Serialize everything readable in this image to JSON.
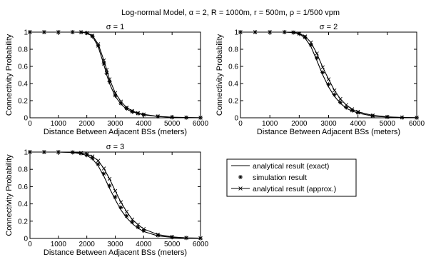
{
  "suptitle": "Log-normal Model, α = 2, R = 1000m, r = 500m, ρ = 1/500 vpm",
  "legend": {
    "entries": [
      "analytical result (exact)",
      "simulation result",
      "analytical result (approx.)"
    ],
    "markers": [
      "line",
      "asterisk",
      "line-x"
    ]
  },
  "chart_data": [
    {
      "type": "line",
      "title": "σ = 1",
      "xlabel": "Distance Between Adjacent BSs (meters)",
      "ylabel": "Connectivity Probability",
      "xlim": [
        0,
        6000
      ],
      "ylim": [
        0,
        1
      ],
      "xticks": [
        "0",
        "1000",
        "2000",
        "3000",
        "4000",
        "5000",
        "6000"
      ],
      "yticks": [
        "0",
        "0.2",
        "0.4",
        "0.6",
        "0.8",
        "1"
      ],
      "grid": false,
      "x": [
        0,
        500,
        1000,
        1500,
        1800,
        2000,
        2200,
        2400,
        2600,
        2700,
        2800,
        3000,
        3200,
        3400,
        3600,
        3800,
        4000,
        4500,
        5000,
        5500,
        6000
      ],
      "series": [
        {
          "values": [
            1.0,
            1.0,
            1.0,
            1.0,
            0.999,
            0.99,
            0.95,
            0.83,
            0.62,
            0.5,
            0.4,
            0.25,
            0.16,
            0.1,
            0.07,
            0.05,
            0.035,
            0.015,
            0.006,
            0.002,
            0.001
          ]
        },
        {
          "values": [
            1.0,
            1.0,
            1.0,
            1.0,
            0.999,
            0.99,
            0.95,
            0.84,
            0.63,
            0.52,
            0.42,
            0.26,
            0.17,
            0.11,
            0.07,
            0.05,
            0.035,
            0.015,
            0.006,
            0.002,
            0.001
          ]
        },
        {
          "values": [
            1.0,
            1.0,
            1.0,
            1.0,
            0.999,
            0.99,
            0.96,
            0.86,
            0.67,
            0.56,
            0.45,
            0.29,
            0.19,
            0.12,
            0.08,
            0.055,
            0.04,
            0.017,
            0.007,
            0.003,
            0.001
          ]
        }
      ]
    },
    {
      "type": "line",
      "title": "σ = 2",
      "xlabel": "Distance Between Adjacent BSs (meters)",
      "ylabel": "Connectivity Probability",
      "xlim": [
        0,
        6000
      ],
      "ylim": [
        0,
        1
      ],
      "xticks": [
        "0",
        "1000",
        "2000",
        "3000",
        "4000",
        "5000",
        "6000"
      ],
      "yticks": [
        "0",
        "0.2",
        "0.4",
        "0.6",
        "0.8",
        "1"
      ],
      "grid": false,
      "x": [
        0,
        500,
        1000,
        1500,
        1800,
        2000,
        2200,
        2400,
        2600,
        2800,
        3000,
        3200,
        3400,
        3600,
        3800,
        4000,
        4500,
        5000,
        5500,
        6000
      ],
      "series": [
        {
          "values": [
            1.0,
            1.0,
            1.0,
            1.0,
            0.995,
            0.98,
            0.93,
            0.83,
            0.67,
            0.5,
            0.36,
            0.25,
            0.17,
            0.11,
            0.08,
            0.055,
            0.02,
            0.008,
            0.003,
            0.001
          ]
        },
        {
          "values": [
            1.0,
            1.0,
            1.0,
            1.0,
            0.995,
            0.98,
            0.94,
            0.85,
            0.7,
            0.53,
            0.39,
            0.27,
            0.18,
            0.12,
            0.085,
            0.06,
            0.022,
            0.009,
            0.003,
            0.001
          ]
        },
        {
          "values": [
            1.0,
            1.0,
            1.0,
            1.0,
            0.997,
            0.985,
            0.95,
            0.88,
            0.75,
            0.59,
            0.45,
            0.32,
            0.22,
            0.15,
            0.1,
            0.07,
            0.028,
            0.011,
            0.004,
            0.002
          ]
        }
      ]
    },
    {
      "type": "line",
      "title": "σ = 3",
      "xlabel": "Distance Between Adjacent BSs (meters)",
      "ylabel": "Connectivity Probability",
      "xlim": [
        0,
        6000
      ],
      "ylim": [
        0,
        1
      ],
      "xticks": [
        "0",
        "1000",
        "2000",
        "3000",
        "4000",
        "5000",
        "6000"
      ],
      "yticks": [
        "0",
        "0.2",
        "0.4",
        "0.6",
        "0.8",
        "1"
      ],
      "grid": false,
      "x": [
        0,
        500,
        1000,
        1500,
        1800,
        2000,
        2200,
        2400,
        2600,
        2800,
        3000,
        3200,
        3400,
        3600,
        3800,
        4000,
        4500,
        5000,
        5500,
        6000
      ],
      "series": [
        {
          "values": [
            1.0,
            1.0,
            1.0,
            0.995,
            0.98,
            0.96,
            0.92,
            0.84,
            0.72,
            0.58,
            0.45,
            0.33,
            0.24,
            0.17,
            0.12,
            0.08,
            0.03,
            0.012,
            0.005,
            0.002
          ]
        },
        {
          "values": [
            1.0,
            1.0,
            1.0,
            0.996,
            0.985,
            0.965,
            0.93,
            0.86,
            0.75,
            0.61,
            0.48,
            0.36,
            0.26,
            0.19,
            0.13,
            0.09,
            0.035,
            0.014,
            0.006,
            0.002
          ]
        },
        {
          "values": [
            1.0,
            1.0,
            1.0,
            0.997,
            0.99,
            0.975,
            0.95,
            0.9,
            0.81,
            0.69,
            0.55,
            0.42,
            0.31,
            0.22,
            0.16,
            0.11,
            0.045,
            0.018,
            0.007,
            0.003
          ]
        }
      ]
    }
  ]
}
